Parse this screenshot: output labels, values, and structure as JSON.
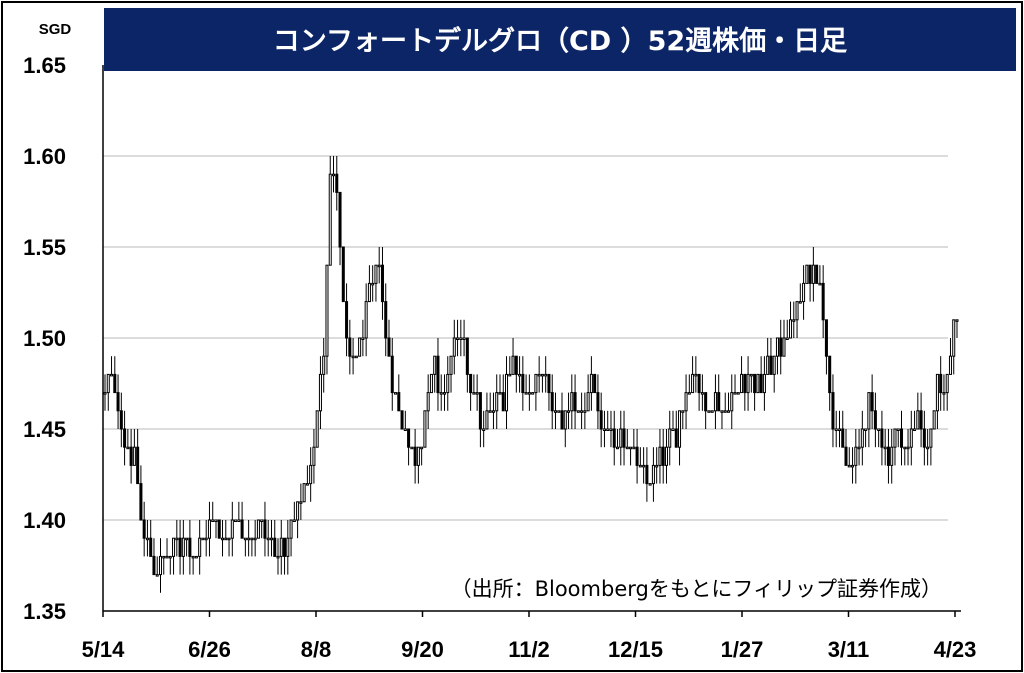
{
  "chart_data": {
    "type": "candlestick",
    "title": "コンフォートデルグロ（CD ）52週株価・日足",
    "unit": "SGD",
    "source_note": "（出所：Bloombergをもとにフィリップ証券作成）",
    "ylim": [
      1.35,
      1.65
    ],
    "y_ticks": [
      "1.35",
      "1.40",
      "1.45",
      "1.50",
      "1.55",
      "1.60",
      "1.65"
    ],
    "x_ticks": [
      "5/14",
      "6/26",
      "8/8",
      "9/20",
      "11/2",
      "12/15",
      "1/27",
      "3/11",
      "4/23"
    ],
    "grid": true,
    "colors": {
      "title_bg": "#0b2566",
      "up_body": "#ffffff",
      "down_body": "#000000",
      "grid": "#d0d0d0"
    },
    "anchors": [
      [
        0,
        1.47
      ],
      [
        2,
        1.48
      ],
      [
        6,
        1.44
      ],
      [
        9,
        1.43
      ],
      [
        12,
        1.39
      ],
      [
        16,
        1.37
      ],
      [
        20,
        1.38
      ],
      [
        24,
        1.39
      ],
      [
        28,
        1.38
      ],
      [
        32,
        1.4
      ],
      [
        36,
        1.39
      ],
      [
        40,
        1.4
      ],
      [
        44,
        1.39
      ],
      [
        48,
        1.4
      ],
      [
        52,
        1.38
      ],
      [
        56,
        1.39
      ],
      [
        60,
        1.41
      ],
      [
        64,
        1.44
      ],
      [
        67,
        1.5
      ],
      [
        69,
        1.59
      ],
      [
        71,
        1.58
      ],
      [
        73,
        1.52
      ],
      [
        75,
        1.48
      ],
      [
        78,
        1.5
      ],
      [
        81,
        1.52
      ],
      [
        84,
        1.54
      ],
      [
        86,
        1.5
      ],
      [
        89,
        1.47
      ],
      [
        92,
        1.45
      ],
      [
        95,
        1.43
      ],
      [
        98,
        1.46
      ],
      [
        101,
        1.48
      ],
      [
        104,
        1.47
      ],
      [
        107,
        1.5
      ],
      [
        110,
        1.49
      ],
      [
        113,
        1.47
      ],
      [
        116,
        1.45
      ],
      [
        119,
        1.46
      ],
      [
        122,
        1.47
      ],
      [
        125,
        1.49
      ],
      [
        128,
        1.48
      ],
      [
        131,
        1.47
      ],
      [
        134,
        1.48
      ],
      [
        137,
        1.46
      ],
      [
        140,
        1.45
      ],
      [
        143,
        1.47
      ],
      [
        146,
        1.46
      ],
      [
        149,
        1.47
      ],
      [
        152,
        1.45
      ],
      [
        155,
        1.44
      ],
      [
        158,
        1.45
      ],
      [
        161,
        1.44
      ],
      [
        164,
        1.43
      ],
      [
        166,
        1.42
      ],
      [
        169,
        1.43
      ],
      [
        172,
        1.44
      ],
      [
        175,
        1.45
      ],
      [
        178,
        1.47
      ],
      [
        181,
        1.48
      ],
      [
        184,
        1.46
      ],
      [
        187,
        1.47
      ],
      [
        190,
        1.46
      ],
      [
        193,
        1.47
      ],
      [
        196,
        1.48
      ],
      [
        199,
        1.47
      ],
      [
        202,
        1.48
      ],
      [
        205,
        1.49
      ],
      [
        208,
        1.5
      ],
      [
        211,
        1.51
      ],
      [
        214,
        1.53
      ],
      [
        217,
        1.54
      ],
      [
        219,
        1.53
      ],
      [
        221,
        1.49
      ],
      [
        223,
        1.46
      ],
      [
        225,
        1.44
      ],
      [
        228,
        1.43
      ],
      [
        231,
        1.44
      ],
      [
        234,
        1.46
      ],
      [
        237,
        1.45
      ],
      [
        240,
        1.44
      ],
      [
        243,
        1.45
      ],
      [
        246,
        1.44
      ],
      [
        249,
        1.46
      ],
      [
        252,
        1.44
      ],
      [
        255,
        1.47
      ],
      [
        258,
        1.48
      ],
      [
        260,
        1.51
      ],
      [
        261,
        1.51
      ]
    ]
  }
}
